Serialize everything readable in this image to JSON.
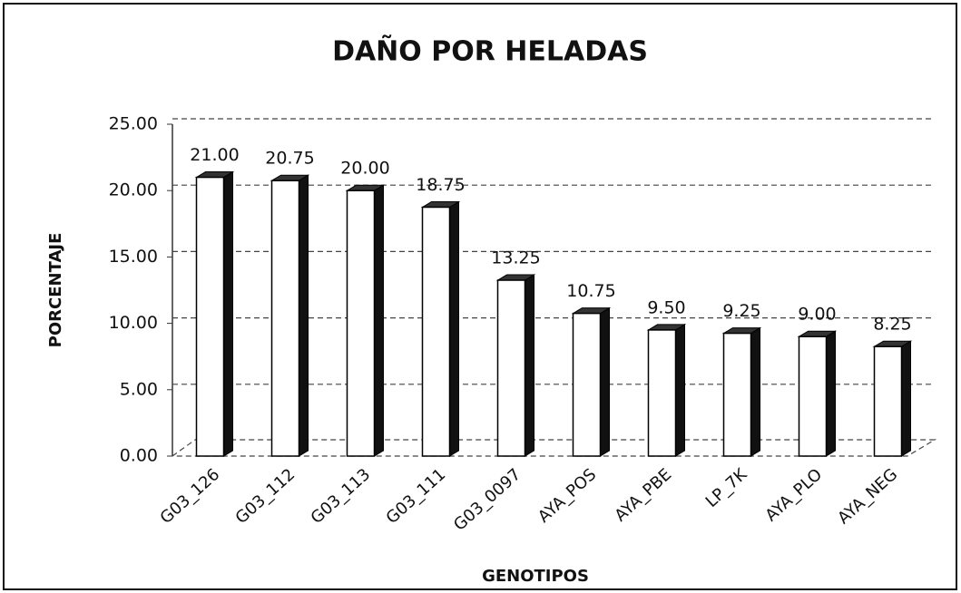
{
  "chart_data": {
    "type": "bar3d",
    "title": "DAÑO POR HELADAS",
    "x_label": "GENOTIPOS",
    "y_label": "PORCENTAJE",
    "categories": [
      "G03_126",
      "G03_112",
      "G03_113",
      "G03_111",
      "G03_0097",
      "AYA_POS",
      "AYA_PBE",
      "LP_7K",
      "AYA_PLO",
      "AYA_NEG"
    ],
    "values": [
      21,
      20.75,
      20,
      18.75,
      13.25,
      10.75,
      9.5,
      9.25,
      9,
      8.25
    ],
    "value_labels": [
      "21.00",
      "20.75",
      "20.00",
      "18.75",
      "13.25",
      "10.75",
      "9.50",
      "9.25",
      "9.00",
      "8.25"
    ],
    "color": "#ffffff",
    "side_color": "#111111",
    "ylim": [
      0,
      25
    ],
    "yticks": [
      {
        "value": 0,
        "label": "0.00"
      },
      {
        "value": 5,
        "label": "5.00"
      },
      {
        "value": 10,
        "label": "10.00"
      },
      {
        "value": 15,
        "label": "15.00"
      },
      {
        "value": 20,
        "label": "20.00"
      },
      {
        "value": 25,
        "label": "25.00"
      }
    ],
    "grid": true
  }
}
